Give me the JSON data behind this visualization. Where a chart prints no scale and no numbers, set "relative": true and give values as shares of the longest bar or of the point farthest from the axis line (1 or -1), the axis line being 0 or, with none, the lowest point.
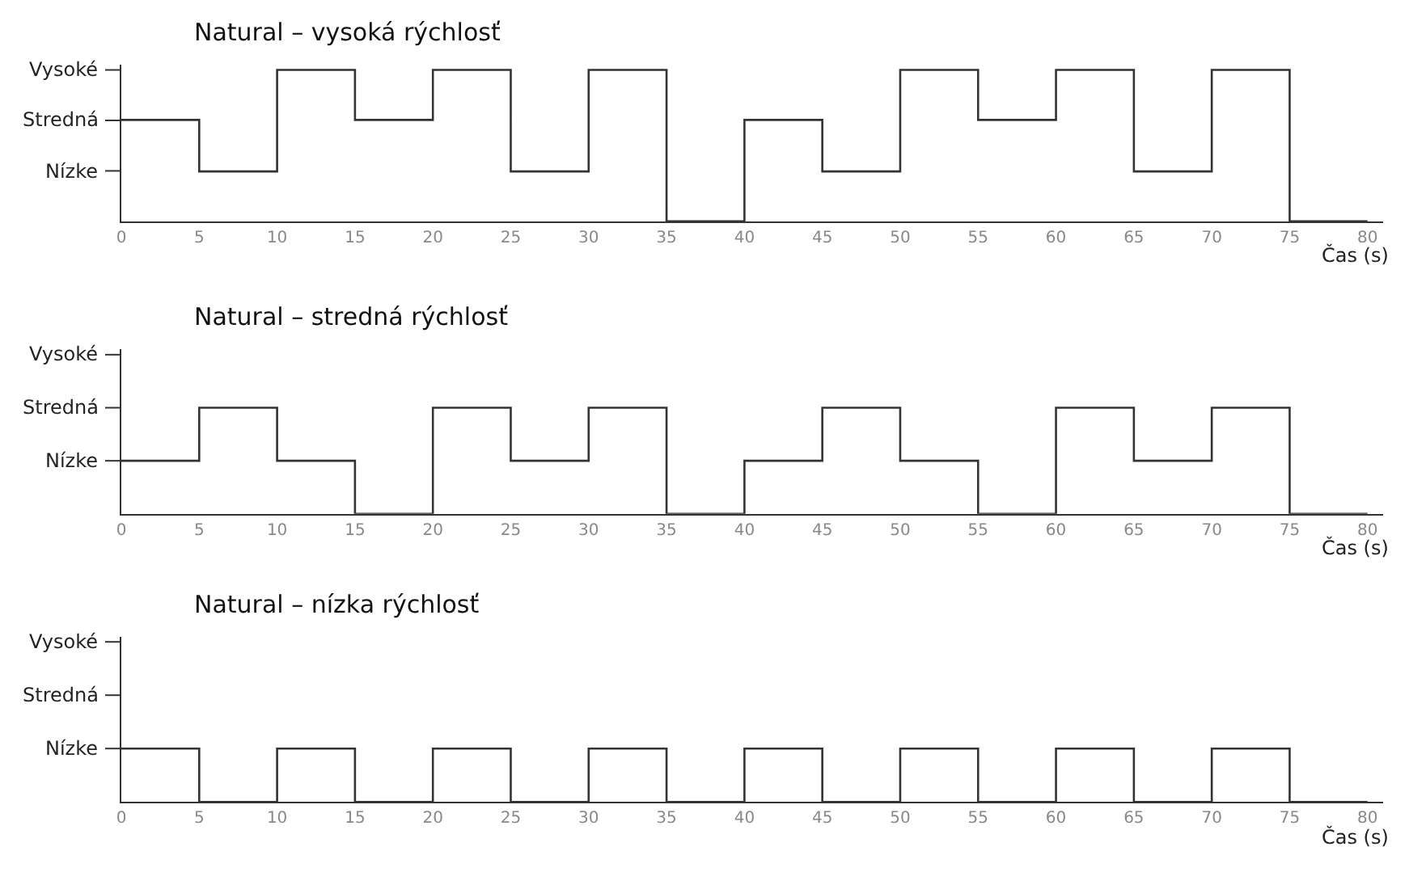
{
  "chart_data": [
    {
      "type": "step",
      "title": "Natural – vysoká rýchlosť",
      "xlabel": "Čas (s)",
      "relative": true,
      "x": [
        0,
        5,
        10,
        15,
        20,
        25,
        30,
        35,
        40,
        45,
        50,
        55,
        60,
        65,
        70,
        75,
        80
      ],
      "series": [
        {
          "color": "#333333",
          "values": [
            0.67,
            0.33,
            1,
            0.67,
            1,
            0.33,
            1,
            0,
            0.67,
            0.33,
            1,
            0.67,
            1,
            0.33,
            1,
            0,
            0
          ]
        }
      ],
      "xlim": [
        0,
        81
      ],
      "xticks": [
        0,
        5,
        10,
        15,
        20,
        25,
        30,
        35,
        40,
        45,
        50,
        55,
        60,
        65,
        70,
        75,
        80
      ],
      "annotations": [
        "Vysoké",
        "Stredná",
        "Nízke"
      ],
      "marker": "none",
      "line_style": "solid"
    },
    {
      "type": "step",
      "title": "Natural – stredná rýchlosť",
      "xlabel": "Čas (s)",
      "relative": true,
      "x": [
        0,
        5,
        10,
        15,
        20,
        25,
        30,
        35,
        40,
        45,
        50,
        55,
        60,
        65,
        70,
        75,
        80
      ],
      "series": [
        {
          "color": "#333333",
          "values": [
            0.5,
            1,
            0.5,
            0,
            1,
            0.5,
            1,
            0,
            0.5,
            1,
            0.5,
            0,
            1,
            0.5,
            1,
            0,
            0
          ]
        }
      ],
      "xlim": [
        0,
        81
      ],
      "xticks": [
        0,
        5,
        10,
        15,
        20,
        25,
        30,
        35,
        40,
        45,
        50,
        55,
        60,
        65,
        70,
        75,
        80
      ],
      "annotations": [
        "Vysoké",
        "Stredná",
        "Nízke"
      ],
      "marker": "none",
      "line_style": "solid"
    },
    {
      "type": "step",
      "title": "Natural – nízka rýchlosť",
      "xlabel": "Čas (s)",
      "relative": true,
      "x": [
        0,
        5,
        10,
        15,
        20,
        25,
        30,
        35,
        40,
        45,
        50,
        55,
        60,
        65,
        70,
        75,
        80
      ],
      "series": [
        {
          "color": "#333333",
          "values": [
            1,
            0,
            1,
            0,
            1,
            0,
            1,
            0,
            1,
            0,
            1,
            0,
            1,
            0,
            1,
            0,
            0
          ]
        }
      ],
      "xlim": [
        0,
        81
      ],
      "xticks": [
        0,
        5,
        10,
        15,
        20,
        25,
        30,
        35,
        40,
        45,
        50,
        55,
        60,
        65,
        70,
        75,
        80
      ],
      "annotations": [
        "Vysoké",
        "Stredná",
        "Nízke"
      ],
      "marker": "none",
      "line_style": "solid"
    }
  ]
}
